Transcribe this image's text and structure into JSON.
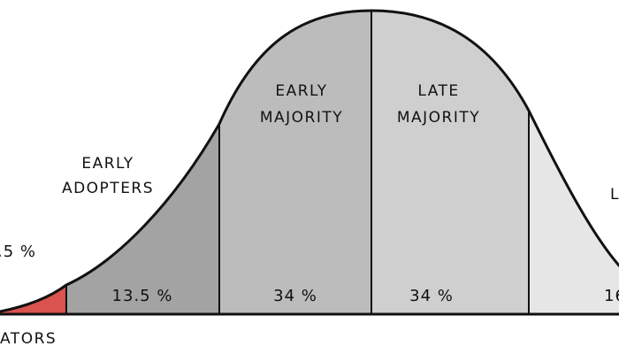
{
  "colors": {
    "innovators": "#d9534f",
    "early_adopters": "#a3a3a3",
    "early_majority": "#bcbcbc",
    "late_majority": "#cfcfcf",
    "laggards": "#e6e6e6",
    "outline": "#111111",
    "background": "#ffffff"
  },
  "segments": [
    {
      "id": "innovators",
      "label_lines": [
        "ATORS"
      ],
      "percent": ".5 %"
    },
    {
      "id": "early_adopters",
      "label_lines": [
        "EARLY",
        "ADOPTERS"
      ],
      "percent": "13.5 %"
    },
    {
      "id": "early_majority",
      "label_lines": [
        "EARLY",
        "MAJORITY"
      ],
      "percent": "34 %"
    },
    {
      "id": "late_majority",
      "label_lines": [
        "LATE",
        "MAJORITY"
      ],
      "percent": "34 %"
    },
    {
      "id": "laggards",
      "label_lines": [
        "L"
      ],
      "percent": "16"
    }
  ]
}
